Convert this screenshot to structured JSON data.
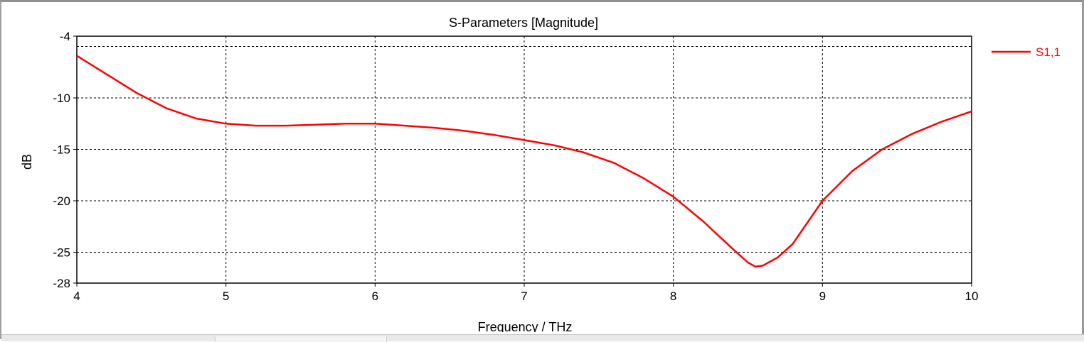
{
  "chart_data": {
    "type": "line",
    "title": "S-Parameters [Magnitude]",
    "xlabel": "Frequency / THz",
    "ylabel": "dB",
    "xlim": [
      4,
      10
    ],
    "ylim": [
      -28,
      -4
    ],
    "x_ticks": [
      4,
      5,
      6,
      7,
      8,
      9,
      10
    ],
    "y_ticks": [
      -4,
      -10,
      -15,
      -20,
      -25,
      -28
    ],
    "x_grid": [
      5,
      6,
      7,
      8,
      9
    ],
    "y_grid": [
      -5,
      -10,
      -15,
      -20,
      -25
    ],
    "grid": true,
    "legend_position": "top-right",
    "series": [
      {
        "name": "S1,1",
        "color": "#ff0000",
        "x": [
          4.0,
          4.2,
          4.4,
          4.6,
          4.8,
          5.0,
          5.2,
          5.4,
          5.6,
          5.8,
          6.0,
          6.2,
          6.4,
          6.6,
          6.8,
          7.0,
          7.2,
          7.4,
          7.6,
          7.8,
          8.0,
          8.2,
          8.4,
          8.5,
          8.55,
          8.6,
          8.7,
          8.8,
          9.0,
          9.2,
          9.4,
          9.6,
          9.8,
          10.0
        ],
        "y": [
          -5.9,
          -7.7,
          -9.5,
          -11.0,
          -12.0,
          -12.5,
          -12.7,
          -12.7,
          -12.6,
          -12.5,
          -12.5,
          -12.7,
          -12.9,
          -13.2,
          -13.6,
          -14.1,
          -14.6,
          -15.3,
          -16.3,
          -17.8,
          -19.6,
          -22.0,
          -24.7,
          -26.0,
          -26.4,
          -26.3,
          -25.5,
          -24.2,
          -20.0,
          -17.1,
          -15.0,
          -13.5,
          -12.3,
          -11.3
        ]
      }
    ]
  }
}
